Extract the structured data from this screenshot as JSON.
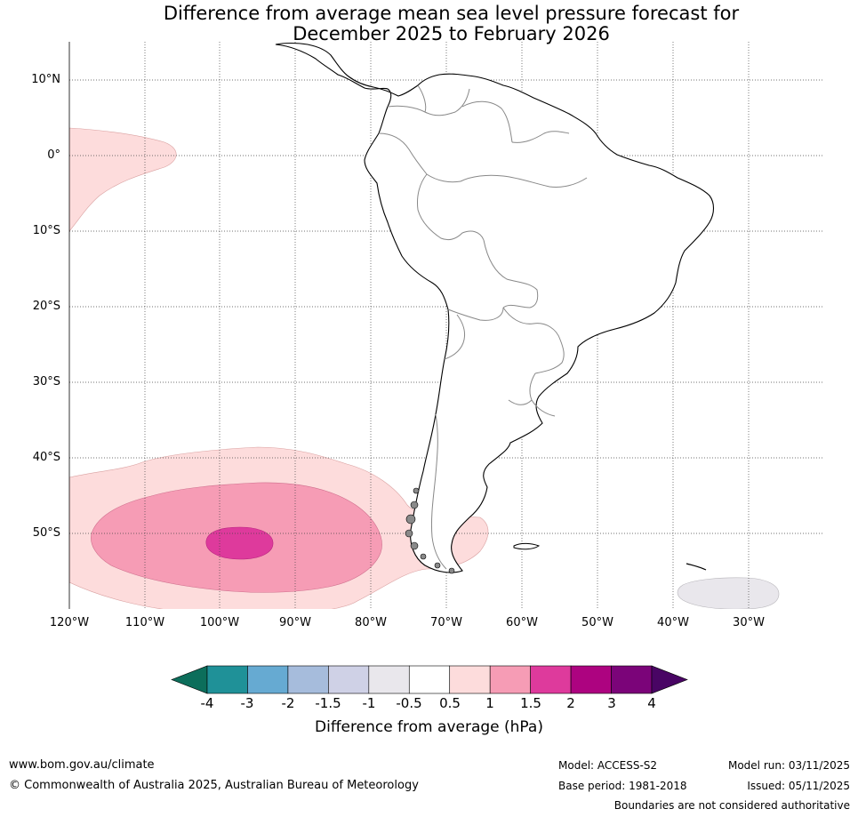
{
  "title": {
    "line1": "Difference from average mean sea level pressure forecast for",
    "line2": "December 2025 to February 2026"
  },
  "map": {
    "region": "South America",
    "lat_labels": [
      "10°N",
      "0°",
      "10°S",
      "20°S",
      "30°S",
      "40°S",
      "50°S"
    ],
    "lon_labels": [
      "120°W",
      "110°W",
      "100°W",
      "90°W",
      "80°W",
      "70°W",
      "60°W",
      "50°W",
      "40°W",
      "30°W"
    ],
    "anomaly_regions": [
      {
        "name": "pacific-equatorial-positive",
        "range_hpa": "0.5 to 1",
        "color": "#fddcdc"
      },
      {
        "name": "southeast-pacific-positive",
        "range_hpa": "0.5 to 1",
        "color": "#fddcdc"
      },
      {
        "name": "southeast-pacific-positive-core",
        "range_hpa": "1 to 1.5",
        "color": "#f69cb5"
      },
      {
        "name": "southeast-pacific-positive-max",
        "range_hpa": "1.5 to 2",
        "color": "#de3a9c"
      },
      {
        "name": "south-atlantic-negative",
        "range_hpa": "-1 to -0.5",
        "color": "#e9e7ec"
      }
    ]
  },
  "colorbar": {
    "ticks": [
      "-4",
      "-3",
      "-2",
      "-1.5",
      "-1",
      "-0.5",
      "0.5",
      "1",
      "1.5",
      "2",
      "3",
      "4"
    ],
    "under_color": "#0c6e5b",
    "over_color": "#490564",
    "colors": [
      "#1f9198",
      "#66aad2",
      "#a6bcdc",
      "#cfd1e6",
      "#e9e7ec",
      "#ffffff",
      "#fddcdc",
      "#f69cb5",
      "#de3a9c",
      "#ad0380",
      "#7b0479"
    ],
    "label": "Difference from average (hPa)"
  },
  "footer": {
    "website": "www.bom.gov.au/climate",
    "copyright": "© Commonwealth of Australia 2025, Australian Bureau of Meteorology",
    "model": "Model: ACCESS-S2",
    "base_period": "Base period: 1981-2018",
    "model_run": "Model run: 03/11/2025",
    "issued": "Issued: 05/11/2025",
    "disclaimer": "Boundaries are not considered authoritative"
  }
}
